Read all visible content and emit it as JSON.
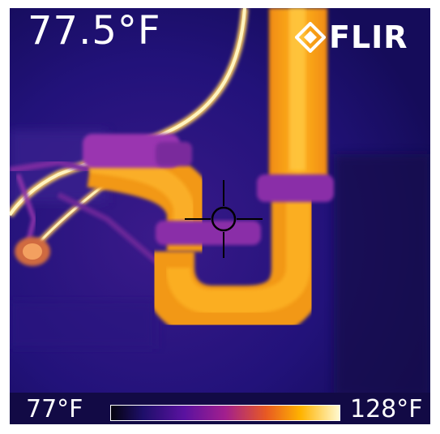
{
  "readout": {
    "spot_temperature": "77.5°F"
  },
  "brand": {
    "name": "FLIR",
    "logo": "flir-diamond-logo"
  },
  "scale": {
    "min_label": "77°F",
    "max_label": "128°F",
    "palette": "iron"
  },
  "crosshair": {
    "icon": "crosshair-icon"
  },
  "colors": {
    "background": "#1a1065",
    "hot": "#ffb300",
    "hottest": "#fff3a0",
    "warm": "#9a2aa8"
  }
}
